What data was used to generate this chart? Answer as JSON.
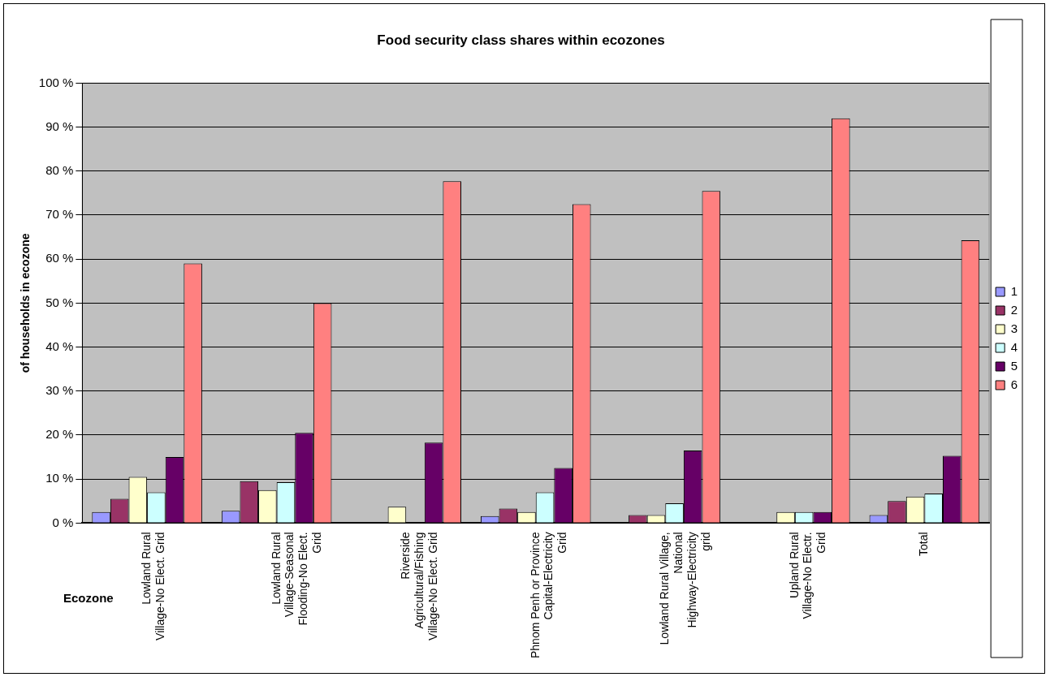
{
  "chart_data": {
    "type": "bar",
    "title": "Food security class shares within ecozones",
    "xlabel": "Ecozone",
    "ylabel": "of households in ecozone",
    "categories": [
      "Lowland Rural Village-No Elect. Grid",
      "Lowland Rural Village-Seasonal Flooding-No Elect. Grid",
      "Riverside Agricultural/Fishing Village-No Elect. Grid",
      "Phnom Penh or Province Capital-Electricity Grid",
      "Lowland Rural Village, National Highway-Electricity grid",
      "Upland Rural Village-No Electr. Grid",
      "Total"
    ],
    "series": [
      {
        "name": "1",
        "color": "#9999ff",
        "values": [
          2.5,
          2.8,
          0,
          1.6,
          0,
          0,
          1.8
        ]
      },
      {
        "name": "2",
        "color": "#993366",
        "values": [
          5.5,
          9.5,
          0,
          3.3,
          1.8,
          0,
          5
        ]
      },
      {
        "name": "3",
        "color": "#ffffcc",
        "values": [
          10.5,
          7.5,
          3.7,
          2.5,
          1.8,
          2.5,
          6
        ]
      },
      {
        "name": "4",
        "color": "#ccffff",
        "values": [
          7,
          9.3,
          0,
          7,
          4.5,
          2.5,
          6.7
        ]
      },
      {
        "name": "5",
        "color": "#660066",
        "values": [
          15,
          20.5,
          18.3,
          12.5,
          16.5,
          2.5,
          15.3
        ]
      },
      {
        "name": "6",
        "color": "#ff8080",
        "values": [
          59,
          50,
          77.7,
          72.5,
          75.5,
          92,
          64.3
        ]
      }
    ],
    "ylim": [
      0,
      100
    ],
    "yticks": [
      {
        "value": 0,
        "label": "0 %"
      },
      {
        "value": 10,
        "label": "10 %"
      },
      {
        "value": 20,
        "label": "20 %"
      },
      {
        "value": 30,
        "label": "30 %"
      },
      {
        "value": 40,
        "label": "40 %"
      },
      {
        "value": 50,
        "label": "50 %"
      },
      {
        "value": 60,
        "label": "60 %"
      },
      {
        "value": 70,
        "label": "70 %"
      },
      {
        "value": 80,
        "label": "80 %"
      },
      {
        "value": 90,
        "label": "90 %"
      },
      {
        "value": 100,
        "label": "100 %"
      }
    ],
    "grid": "y",
    "legend": "right"
  }
}
